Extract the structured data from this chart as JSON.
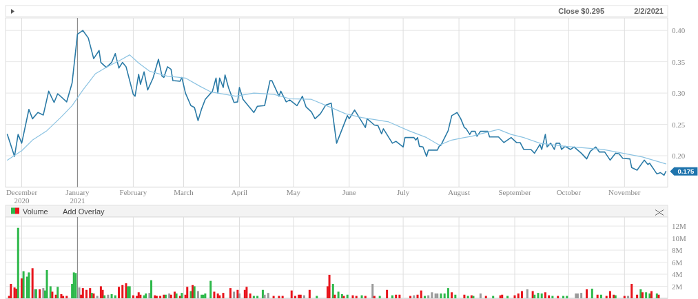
{
  "chart_data": [
    {
      "type": "line",
      "xlim": [
        "2020-11-22",
        "2021-11-25"
      ],
      "ylim": [
        0.15,
        0.42
      ],
      "xticks": [
        {
          "value": "2020-12-01",
          "label": "December\n2020"
        },
        {
          "value": "2021-01-01",
          "label": "January\n2021"
        },
        {
          "value": "2021-02-01",
          "label": "February"
        },
        {
          "value": "2021-03-01",
          "label": "March"
        },
        {
          "value": "2021-04-01",
          "label": "April"
        },
        {
          "value": "2021-05-01",
          "label": "May"
        },
        {
          "value": "2021-06-01",
          "label": "June"
        },
        {
          "value": "2021-07-01",
          "label": "July"
        },
        {
          "value": "2021-08-01",
          "label": "August"
        },
        {
          "value": "2021-09-01",
          "label": "September"
        },
        {
          "value": "2021-10-01",
          "label": "October"
        },
        {
          "value": "2021-11-01",
          "label": "November"
        }
      ],
      "yticks": [
        {
          "value": 0.2,
          "label": "0.20"
        },
        {
          "value": 0.25,
          "label": "0.25"
        },
        {
          "value": 0.3,
          "label": "0.30"
        },
        {
          "value": 0.35,
          "label": "0.35"
        },
        {
          "value": 0.4,
          "label": "0.40"
        }
      ],
      "grid": true,
      "ref_lines": [
        {
          "axis": "x",
          "value": "2021-01-01",
          "color": "#8c8c8c"
        }
      ],
      "annotations": [
        "Close $0.295",
        "2/2/2021",
        {
          "text": "0.175",
          "x": "2021-11-24",
          "y": 0.175
        }
      ],
      "series": [
        {
          "color": "#2a7aa6",
          "x": [
            "2020-11-23",
            "2020-11-27",
            "2020-11-29",
            "2020-12-01",
            "2020-12-05",
            "2020-12-07",
            "2020-12-10",
            "2020-12-13",
            "2020-12-16",
            "2020-12-19",
            "2020-12-21",
            "2020-12-26",
            "2020-12-29",
            "2021-01-01",
            "2021-01-04",
            "2021-01-07",
            "2021-01-10",
            "2021-01-13",
            "2021-01-14",
            "2021-01-17",
            "2021-01-20",
            "2021-01-22",
            "2021-01-24",
            "2021-01-26",
            "2021-01-28",
            "2021-02-01",
            "2021-02-02",
            "2021-02-04",
            "2021-02-05",
            "2021-02-07",
            "2021-02-09",
            "2021-02-12",
            "2021-02-15",
            "2021-02-17",
            "2021-02-18",
            "2021-02-20",
            "2021-02-22",
            "2021-02-23",
            "2021-02-27",
            "2021-02-28",
            "2021-03-02",
            "2021-03-05",
            "2021-03-07",
            "2021-03-09",
            "2021-03-11",
            "2021-03-13",
            "2021-03-17",
            "2021-03-19",
            "2021-03-20",
            "2021-03-21",
            "2021-03-23",
            "2021-03-24",
            "2021-03-26",
            "2021-03-29",
            "2021-03-31",
            "2021-04-01",
            "2021-04-03",
            "2021-04-09",
            "2021-04-11",
            "2021-04-15",
            "2021-04-18",
            "2021-04-19",
            "2021-04-23",
            "2021-04-24",
            "2021-04-27",
            "2021-04-29",
            "2021-05-03",
            "2021-05-06",
            "2021-05-08",
            "2021-05-11",
            "2021-05-13",
            "2021-05-16",
            "2021-05-19",
            "2021-05-22",
            "2021-05-25",
            "2021-05-28",
            "2021-05-31",
            "2021-06-01",
            "2021-06-04",
            "2021-06-07",
            "2021-06-10",
            "2021-06-11",
            "2021-06-15",
            "2021-06-17",
            "2021-06-19",
            "2021-06-20",
            "2021-06-25",
            "2021-06-27",
            "2021-07-01",
            "2021-07-02",
            "2021-07-07",
            "2021-07-08",
            "2021-07-09",
            "2021-07-10",
            "2021-07-12",
            "2021-07-14",
            "2021-07-15",
            "2021-07-20",
            "2021-07-21",
            "2021-07-22",
            "2021-07-26",
            "2021-07-28",
            "2021-07-31",
            "2021-08-02",
            "2021-08-04",
            "2021-08-05",
            "2021-08-07",
            "2021-08-08",
            "2021-08-10",
            "2021-08-11",
            "2021-08-13",
            "2021-08-17",
            "2021-08-18",
            "2021-08-23",
            "2021-08-26",
            "2021-08-30",
            "2021-09-02",
            "2021-09-04",
            "2021-09-06",
            "2021-09-10",
            "2021-09-12",
            "2021-09-15",
            "2021-09-16",
            "2021-09-18",
            "2021-09-19",
            "2021-09-21",
            "2021-09-23",
            "2021-09-24",
            "2021-09-26",
            "2021-09-27",
            "2021-09-29",
            "2021-10-02",
            "2021-10-04",
            "2021-10-08",
            "2021-10-11",
            "2021-10-13",
            "2021-10-16",
            "2021-10-18",
            "2021-10-21",
            "2021-10-24",
            "2021-10-27",
            "2021-10-29",
            "2021-10-31",
            "2021-11-04",
            "2021-11-05",
            "2021-11-08",
            "2021-11-12",
            "2021-11-14",
            "2021-11-15",
            "2021-11-19",
            "2021-11-21",
            "2021-11-23",
            "2021-11-24"
          ],
          "values": [
            0.234,
            0.199,
            0.234,
            0.22,
            0.274,
            0.259,
            0.269,
            0.265,
            0.303,
            0.285,
            0.299,
            0.286,
            0.316,
            0.394,
            0.4,
            0.388,
            0.355,
            0.368,
            0.349,
            0.341,
            0.349,
            0.363,
            0.34,
            0.349,
            0.342,
            0.298,
            0.295,
            0.33,
            0.314,
            0.334,
            0.305,
            0.324,
            0.354,
            0.327,
            0.325,
            0.342,
            0.338,
            0.32,
            0.319,
            0.325,
            0.3,
            0.28,
            0.277,
            0.256,
            0.275,
            0.29,
            0.303,
            0.324,
            0.3,
            0.324,
            0.309,
            0.329,
            0.308,
            0.285,
            0.286,
            0.309,
            0.29,
            0.269,
            0.279,
            0.28,
            0.32,
            0.32,
            0.295,
            0.303,
            0.286,
            0.289,
            0.28,
            0.295,
            0.278,
            0.27,
            0.259,
            0.267,
            0.281,
            0.284,
            0.22,
            0.242,
            0.264,
            0.259,
            0.273,
            0.259,
            0.245,
            0.259,
            0.249,
            0.248,
            0.235,
            0.243,
            0.22,
            0.223,
            0.214,
            0.229,
            0.229,
            0.225,
            0.229,
            0.215,
            0.214,
            0.199,
            0.209,
            0.209,
            0.215,
            0.217,
            0.24,
            0.264,
            0.269,
            0.259,
            0.245,
            0.243,
            0.234,
            0.239,
            0.239,
            0.231,
            0.239,
            0.239,
            0.23,
            0.23,
            0.221,
            0.229,
            0.221,
            0.221,
            0.21,
            0.21,
            0.204,
            0.218,
            0.21,
            0.234,
            0.214,
            0.22,
            0.21,
            0.22,
            0.22,
            0.21,
            0.215,
            0.21,
            0.214,
            0.204,
            0.195,
            0.207,
            0.214,
            0.206,
            0.206,
            0.193,
            0.204,
            0.203,
            0.196,
            0.195,
            0.181,
            0.177,
            0.193,
            0.186,
            0.188,
            0.171,
            0.173,
            0.169,
            0.175
          ]
        },
        {
          "color": "#8cc3e2",
          "x": [
            "2020-11-23",
            "2020-12-01",
            "2020-12-07",
            "2020-12-15",
            "2020-12-23",
            "2020-12-29",
            "2021-01-04",
            "2021-01-11",
            "2021-01-17",
            "2021-01-25",
            "2021-01-30",
            "2021-02-04",
            "2021-02-10",
            "2021-02-20",
            "2021-03-02",
            "2021-03-10",
            "2021-03-16",
            "2021-03-30",
            "2021-04-09",
            "2021-04-20",
            "2021-04-29",
            "2021-05-11",
            "2021-05-21",
            "2021-05-30",
            "2021-06-08",
            "2021-06-23",
            "2021-07-04",
            "2021-07-14",
            "2021-07-21",
            "2021-07-28",
            "2021-08-04",
            "2021-08-08",
            "2021-08-16",
            "2021-08-23",
            "2021-08-30",
            "2021-09-06",
            "2021-09-15",
            "2021-09-29",
            "2021-10-20",
            "2021-10-31",
            "2021-11-11",
            "2021-11-24"
          ],
          "values": [
            0.193,
            0.208,
            0.225,
            0.24,
            0.262,
            0.28,
            0.305,
            0.331,
            0.341,
            0.353,
            0.361,
            0.348,
            0.335,
            0.327,
            0.324,
            0.311,
            0.302,
            0.295,
            0.3,
            0.298,
            0.291,
            0.29,
            0.278,
            0.267,
            0.261,
            0.254,
            0.24,
            0.229,
            0.217,
            0.225,
            0.229,
            0.231,
            0.237,
            0.242,
            0.234,
            0.229,
            0.22,
            0.215,
            0.21,
            0.204,
            0.198,
            0.187
          ]
        }
      ]
    },
    {
      "type": "bar",
      "title": "Volume",
      "xlim": [
        "2020-11-22",
        "2021-11-25"
      ],
      "ylim": [
        0,
        13.5
      ],
      "xticks": [
        {
          "value": "2020-12-01",
          "label": null
        },
        {
          "value": "2021-01-01",
          "label": null
        },
        {
          "value": "2021-02-01",
          "label": null
        },
        {
          "value": "2021-03-01",
          "label": null
        },
        {
          "value": "2021-04-01",
          "label": null
        },
        {
          "value": "2021-05-01",
          "label": null
        },
        {
          "value": "2021-06-01",
          "label": null
        },
        {
          "value": "2021-07-01",
          "label": null
        },
        {
          "value": "2021-08-01",
          "label": null
        },
        {
          "value": "2021-09-01",
          "label": null
        },
        {
          "value": "2021-10-01",
          "label": null
        },
        {
          "value": "2021-11-01",
          "label": null
        }
      ],
      "yticks": [
        {
          "value": 2,
          "label": "2M"
        },
        {
          "value": 4,
          "label": "4M"
        },
        {
          "value": 6,
          "label": "6M"
        },
        {
          "value": 8,
          "label": "8M"
        },
        {
          "value": 10,
          "label": "10M"
        },
        {
          "value": 12,
          "label": "12M"
        }
      ],
      "grid": true,
      "tick_labels": "y",
      "ref_lines": [
        {
          "axis": "x",
          "value": "2021-01-01",
          "color": "#8c8c8c"
        }
      ],
      "annotations": [
        "Add Overlay"
      ],
      "x": [
        "2020-11-24",
        "2020-11-25",
        "2020-11-27",
        "2020-11-28",
        "2020-11-29",
        "2020-12-01",
        "2020-12-02",
        "2020-12-04",
        "2020-12-05",
        "2020-12-07",
        "2020-12-08",
        "2020-12-09",
        "2020-12-11",
        "2020-12-13",
        "2020-12-14",
        "2020-12-15",
        "2020-12-17",
        "2020-12-18",
        "2020-12-20",
        "2020-12-21",
        "2020-12-23",
        "2020-12-24",
        "2020-12-26",
        "2020-12-29",
        "2020-12-30",
        "2020-12-31",
        "2021-01-02",
        "2021-01-03",
        "2021-01-04",
        "2021-01-06",
        "2021-01-08",
        "2021-01-09",
        "2021-01-10",
        "2021-01-12",
        "2021-01-14",
        "2021-01-15",
        "2021-01-16",
        "2021-01-18",
        "2021-01-20",
        "2021-01-22",
        "2021-01-24",
        "2021-01-26",
        "2021-01-28",
        "2021-01-29",
        "2021-01-30",
        "2021-02-01",
        "2021-02-03",
        "2021-02-04",
        "2021-02-05",
        "2021-02-07",
        "2021-02-08",
        "2021-02-10",
        "2021-02-11",
        "2021-02-13",
        "2021-02-14",
        "2021-02-16",
        "2021-02-18",
        "2021-02-19",
        "2021-02-21",
        "2021-02-22",
        "2021-02-24",
        "2021-02-25",
        "2021-02-27",
        "2021-02-28",
        "2021-03-02",
        "2021-03-03",
        "2021-03-05",
        "2021-03-06",
        "2021-03-07",
        "2021-03-09",
        "2021-03-11",
        "2021-03-12",
        "2021-03-13",
        "2021-03-16",
        "2021-03-18",
        "2021-03-20",
        "2021-03-21",
        "2021-03-23",
        "2021-03-27",
        "2021-03-29",
        "2021-03-31",
        "2021-04-01",
        "2021-04-04",
        "2021-04-05",
        "2021-04-07",
        "2021-04-09",
        "2021-04-11",
        "2021-04-14",
        "2021-04-15",
        "2021-04-17",
        "2021-04-20",
        "2021-04-23",
        "2021-04-25",
        "2021-04-30",
        "2021-05-02",
        "2021-05-04",
        "2021-05-05",
        "2021-05-07",
        "2021-05-10",
        "2021-05-14",
        "2021-05-20",
        "2021-05-21",
        "2021-05-23",
        "2021-05-24",
        "2021-05-26",
        "2021-05-28",
        "2021-05-29",
        "2021-05-31",
        "2021-06-03",
        "2021-06-05",
        "2021-06-08",
        "2021-06-10",
        "2021-06-14",
        "2021-06-15",
        "2021-06-18",
        "2021-06-22",
        "2021-06-25",
        "2021-06-27",
        "2021-06-29",
        "2021-07-05",
        "2021-07-07",
        "2021-07-09",
        "2021-07-11",
        "2021-07-13",
        "2021-07-15",
        "2021-07-17",
        "2021-07-19",
        "2021-07-20",
        "2021-07-22",
        "2021-07-24",
        "2021-07-26",
        "2021-07-28",
        "2021-07-30",
        "2021-08-04",
        "2021-08-06",
        "2021-08-08",
        "2021-08-09",
        "2021-08-13",
        "2021-08-16",
        "2021-08-20",
        "2021-08-24",
        "2021-08-25",
        "2021-08-28",
        "2021-09-01",
        "2021-09-03",
        "2021-09-05",
        "2021-09-08",
        "2021-09-11",
        "2021-09-12",
        "2021-09-14",
        "2021-09-16",
        "2021-09-18",
        "2021-09-20",
        "2021-09-22",
        "2021-09-25",
        "2021-09-28",
        "2021-09-30",
        "2021-10-05",
        "2021-10-06",
        "2021-10-08",
        "2021-10-11",
        "2021-10-14",
        "2021-10-17",
        "2021-10-19",
        "2021-10-22",
        "2021-10-24",
        "2021-10-26",
        "2021-10-27",
        "2021-11-01",
        "2021-11-03",
        "2021-11-05",
        "2021-11-08",
        "2021-11-10",
        "2021-11-11",
        "2021-11-13",
        "2021-11-15",
        "2021-11-16",
        "2021-11-19",
        "2021-11-20"
      ],
      "values": [
        0.4,
        2.4,
        1.8,
        1.6,
        11.7,
        3.3,
        4.5,
        3.6,
        4.3,
        5.0,
        1.5,
        1.5,
        1.5,
        1.7,
        1.3,
        4.7,
        2.0,
        1.1,
        0.6,
        1.9,
        0.7,
        0.4,
        0.4,
        2.4,
        4.3,
        4.2,
        1.8,
        0.6,
        1.7,
        1.4,
        1.7,
        0.9,
        0.8,
        0.4,
        2.0,
        1.4,
        0.5,
        0.6,
        0.7,
        0.5,
        1.9,
        2.2,
        2.5,
        2.0,
        2.0,
        0.5,
        0.4,
        1.0,
        0.6,
        0.5,
        0.8,
        0.9,
        3.0,
        0.5,
        0.4,
        0.4,
        0.6,
        0.6,
        0.8,
        0.6,
        1.1,
        0.8,
        0.4,
        0.9,
        0.6,
        1.9,
        1.2,
        2.2,
        2.0,
        1.2,
        0.6,
        0.6,
        0.8,
        2.9,
        1.1,
        0.8,
        0.5,
        0.9,
        1.7,
        1.1,
        1.4,
        0.8,
        1.4,
        1.9,
        0.8,
        0.4,
        0.4,
        1.4,
        0.6,
        0.9,
        0.4,
        0.4,
        0.4,
        1.3,
        0.4,
        0.6,
        0.6,
        0.5,
        1.4,
        0.4,
        2.0,
        3.9,
        2.4,
        0.6,
        1.1,
        0.7,
        0.4,
        0.6,
        0.5,
        0.4,
        0.5,
        0.4,
        2.4,
        0.4,
        0.4,
        1.4,
        0.5,
        0.6,
        0.6,
        0.4,
        0.5,
        0.6,
        1.3,
        0.4,
        0.5,
        1.0,
        0.8,
        0.8,
        0.8,
        0.8,
        1.7,
        1.0,
        0.6,
        0.6,
        0.4,
        0.5,
        0.4,
        0.8,
        0.4,
        0.4,
        0.5,
        0.6,
        0.4,
        0.5,
        0.8,
        1.2,
        1.5,
        1.2,
        0.6,
        0.9,
        0.8,
        1.0,
        0.5,
        0.4,
        0.4,
        0.4,
        0.4,
        0.8,
        0.8,
        0.9,
        1.5,
        1.6,
        0.6,
        0.6,
        0.4,
        1.2,
        0.6,
        0.5,
        0.4,
        0.4,
        2.4,
        0.6,
        1.5,
        1.0,
        1.0,
        0.8,
        1.2,
        0.8,
        0.6
      ],
      "colors": [
        "#e8141c",
        "#e8141c",
        "#e8141c",
        "#e8141c",
        "#2db84a",
        "#e8141c",
        "#2db84a",
        "#2db84a",
        "#2db84a",
        "#e8141c",
        "#9a9a9a",
        "#2db84a",
        "#e8141c",
        "#9a9a9a",
        "#2db84a",
        "#2db84a",
        "#2db84a",
        "#e8141c",
        "#e8141c",
        "#2db84a",
        "#e8141c",
        "#e8141c",
        "#e8141c",
        "#2db84a",
        "#2db84a",
        "#2db84a",
        "#9a9a9a",
        "#e8141c",
        "#e8141c",
        "#e8141c",
        "#e8141c",
        "#2db84a",
        "#e8141c",
        "#9a9a9a",
        "#e8141c",
        "#e8141c",
        "#2db84a",
        "#9a9a9a",
        "#2db84a",
        "#2db84a",
        "#e8141c",
        "#e8141c",
        "#e8141c",
        "#2db84a",
        "#2db84a",
        "#e8141c",
        "#e8141c",
        "#e8141c",
        "#e8141c",
        "#2db84a",
        "#2db84a",
        "#9a9a9a",
        "#2db84a",
        "#e8141c",
        "#e8141c",
        "#e8141c",
        "#e8141c",
        "#2db84a",
        "#9a9a9a",
        "#e8141c",
        "#e8141c",
        "#2db84a",
        "#e8141c",
        "#2db84a",
        "#e8141c",
        "#e8141c",
        "#2db84a",
        "#e8141c",
        "#2db84a",
        "#9a9a9a",
        "#2db84a",
        "#2db84a",
        "#2db84a",
        "#2db84a",
        "#e8141c",
        "#e8141c",
        "#e8141c",
        "#e8141c",
        "#e8141c",
        "#9a9a9a",
        "#e8141c",
        "#9a9a9a",
        "#e8141c",
        "#e8141c",
        "#e8141c",
        "#2db84a",
        "#2db84a",
        "#2db84a",
        "#9a9a9a",
        "#9a9a9a",
        "#e8141c",
        "#e8141c",
        "#e8141c",
        "#e8141c",
        "#e8141c",
        "#e8141c",
        "#e8141c",
        "#9a9a9a",
        "#e8141c",
        "#2db84a",
        "#e8141c",
        "#e8141c",
        "#2db84a",
        "#e8141c",
        "#2db84a",
        "#2db84a",
        "#e8141c",
        "#2db84a",
        "#e8141c",
        "#e8141c",
        "#2db84a",
        "#e8141c",
        "#9a9a9a",
        "#e8141c",
        "#2db84a",
        "#e8141c",
        "#2db84a",
        "#e8141c",
        "#e8141c",
        "#e8141c",
        "#9a9a9a",
        "#e8141c",
        "#e8141c",
        "#2db84a",
        "#9a9a9a",
        "#9a9a9a",
        "#9a9a9a",
        "#9a9a9a",
        "#2db84a",
        "#2db84a",
        "#2db84a",
        "#e8141c",
        "#2db84a",
        "#e8141c",
        "#2db84a",
        "#e8141c",
        "#2db84a",
        "#9a9a9a",
        "#e8141c",
        "#2db84a",
        "#e8141c",
        "#e8141c",
        "#2db84a",
        "#e8141c",
        "#e8141c",
        "#e8141c",
        "#9a9a9a",
        "#e8141c",
        "#2db84a",
        "#2db84a",
        "#2db84a",
        "#e8141c",
        "#e8141c",
        "#2db84a",
        "#e8141c",
        "#2db84a",
        "#2db84a",
        "#9a9a9a",
        "#9a9a9a",
        "#9a9a9a",
        "#e8141c",
        "#2db84a",
        "#e8141c",
        "#2db84a",
        "#e8141c",
        "#e8141c",
        "#e8141c",
        "#2db84a",
        "#e8141c",
        "#9a9a9a",
        "#e8141c",
        "#e8141c",
        "#2db84a",
        "#e8141c",
        "#2db84a",
        "#2db84a",
        "#e8141c",
        "#2db84a",
        "#e8141c"
      ]
    }
  ]
}
